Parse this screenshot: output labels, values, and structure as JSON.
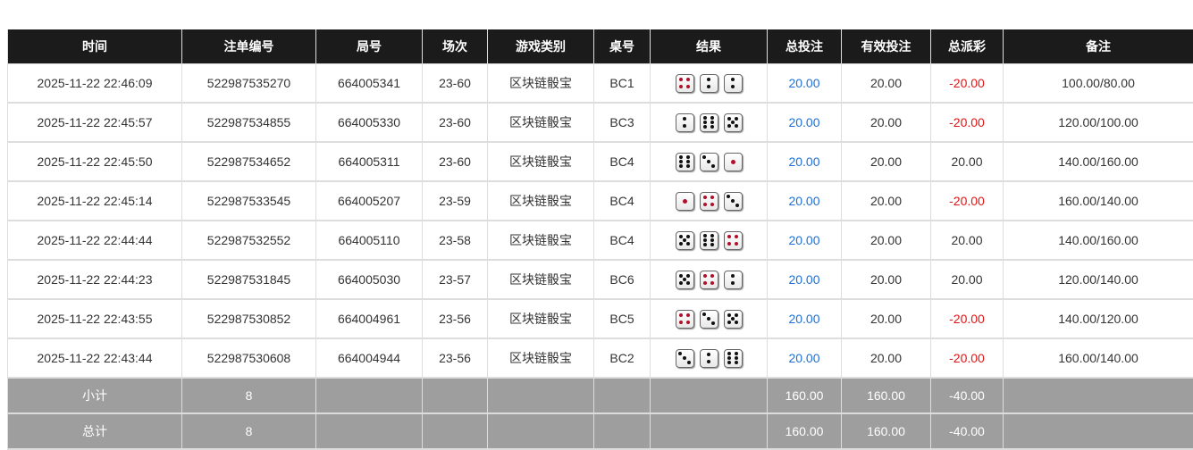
{
  "headers": [
    "时间",
    "注单编号",
    "局号",
    "场次",
    "游戏类别",
    "桌号",
    "结果",
    "总投注",
    "有效投注",
    "总派彩",
    "备注"
  ],
  "rows": [
    {
      "time": "2025-11-22 22:46:09",
      "bet_id": "522987535270",
      "round": "664005341",
      "session": "23-60",
      "game": "区块链骰宝",
      "table": "BC1",
      "dice": [
        4,
        2,
        2
      ],
      "total": "20.00",
      "valid": "20.00",
      "payout": "-20.00",
      "note": "100.00/80.00"
    },
    {
      "time": "2025-11-22 22:45:57",
      "bet_id": "522987534855",
      "round": "664005330",
      "session": "23-60",
      "game": "区块链骰宝",
      "table": "BC3",
      "dice": [
        2,
        6,
        5
      ],
      "total": "20.00",
      "valid": "20.00",
      "payout": "-20.00",
      "note": "120.00/100.00"
    },
    {
      "time": "2025-11-22 22:45:50",
      "bet_id": "522987534652",
      "round": "664005311",
      "session": "23-60",
      "game": "区块链骰宝",
      "table": "BC4",
      "dice": [
        6,
        3,
        1
      ],
      "total": "20.00",
      "valid": "20.00",
      "payout": "20.00",
      "note": "140.00/160.00"
    },
    {
      "time": "2025-11-22 22:45:14",
      "bet_id": "522987533545",
      "round": "664005207",
      "session": "23-59",
      "game": "区块链骰宝",
      "table": "BC4",
      "dice": [
        1,
        4,
        3
      ],
      "total": "20.00",
      "valid": "20.00",
      "payout": "-20.00",
      "note": "160.00/140.00"
    },
    {
      "time": "2025-11-22 22:44:44",
      "bet_id": "522987532552",
      "round": "664005110",
      "session": "23-58",
      "game": "区块链骰宝",
      "table": "BC4",
      "dice": [
        5,
        6,
        4
      ],
      "total": "20.00",
      "valid": "20.00",
      "payout": "20.00",
      "note": "140.00/160.00"
    },
    {
      "time": "2025-11-22 22:44:23",
      "bet_id": "522987531845",
      "round": "664005030",
      "session": "23-57",
      "game": "区块链骰宝",
      "table": "BC6",
      "dice": [
        5,
        4,
        2
      ],
      "total": "20.00",
      "valid": "20.00",
      "payout": "20.00",
      "note": "120.00/140.00"
    },
    {
      "time": "2025-11-22 22:43:55",
      "bet_id": "522987530852",
      "round": "664004961",
      "session": "23-56",
      "game": "区块链骰宝",
      "table": "BC5",
      "dice": [
        4,
        3,
        5
      ],
      "total": "20.00",
      "valid": "20.00",
      "payout": "-20.00",
      "note": "140.00/120.00"
    },
    {
      "time": "2025-11-22 22:43:44",
      "bet_id": "522987530608",
      "round": "664004944",
      "session": "23-56",
      "game": "区块链骰宝",
      "table": "BC2",
      "dice": [
        3,
        2,
        6
      ],
      "total": "20.00",
      "valid": "20.00",
      "payout": "-20.00",
      "note": "160.00/140.00"
    }
  ],
  "subtotal": {
    "label": "小计",
    "count": "8",
    "total": "160.00",
    "valid": "160.00",
    "payout": "-40.00"
  },
  "grandtotal": {
    "label": "总计",
    "count": "8",
    "total": "160.00",
    "valid": "160.00",
    "payout": "-40.00"
  },
  "colors": {
    "header_bg": "#1b1b1b",
    "bet_blue": "#1e6fd6",
    "loss_red": "#e01515",
    "summary_bg": "#9e9e9e"
  }
}
